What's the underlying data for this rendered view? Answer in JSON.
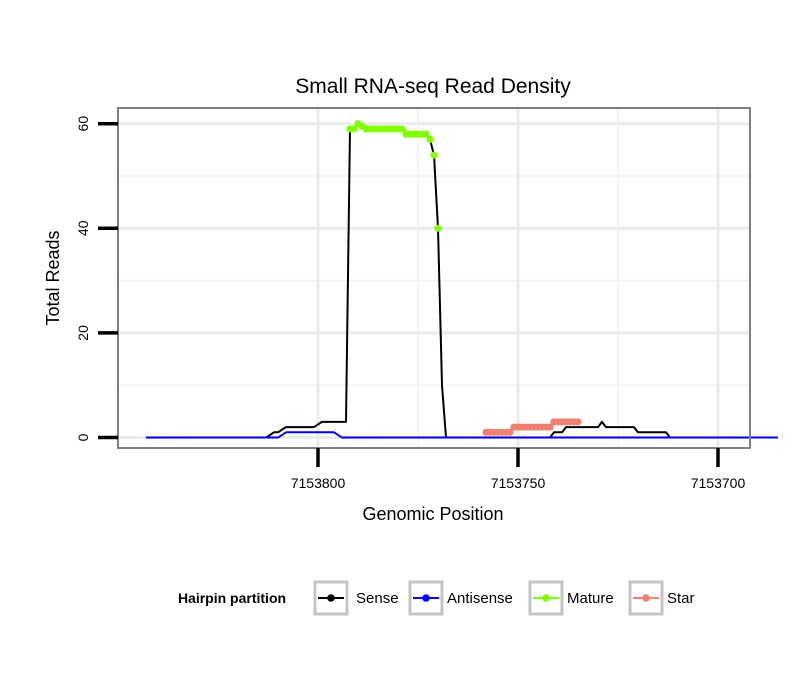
{
  "chart_data": {
    "type": "line",
    "title": "Small RNA-seq Read Density",
    "xlabel": "Genomic Position",
    "ylabel": "Total Reads",
    "xlim": [
      7153850,
      7153692
    ],
    "ylim": [
      -2,
      63
    ],
    "x_reversed": true,
    "x_ticks": [
      {
        "value": 7153800,
        "label": "7153800"
      },
      {
        "value": 7153750,
        "label": "7153750"
      },
      {
        "value": 7153700,
        "label": "7153700"
      }
    ],
    "y_ticks": [
      {
        "value": 0,
        "label": "0"
      },
      {
        "value": 20,
        "label": "20"
      },
      {
        "value": 40,
        "label": "40"
      },
      {
        "value": 60,
        "label": "60"
      }
    ],
    "x_minor_grid": [
      7153775,
      7153725
    ],
    "y_minor_grid": [
      10,
      30,
      50
    ],
    "grid": true,
    "legend": {
      "title": "Hairpin partition",
      "position": "bottom",
      "entries": [
        {
          "name": "Sense",
          "color": "#000000"
        },
        {
          "name": "Antisense",
          "color": "#0000ff"
        },
        {
          "name": "Mature",
          "color": "#7fff00"
        },
        {
          "name": "Star",
          "color": "#f08070"
        }
      ]
    },
    "series": [
      {
        "name": "Sense",
        "color": "#000000",
        "x": [
          7153843,
          7153813,
          7153811,
          7153810,
          7153808,
          7153807,
          7153801,
          7153799,
          7153793,
          7153792,
          7153791,
          7153790,
          7153789,
          7153788,
          7153786,
          7153785,
          7153784,
          7153783,
          7153782,
          7153781,
          7153780,
          7153779,
          7153777,
          7153776,
          7153775,
          7153774,
          7153773,
          7153772,
          7153771,
          7153770,
          7153769,
          7153768,
          7153742,
          7153741,
          7153739,
          7153738,
          7153737,
          7153736,
          7153734,
          7153733,
          7153730,
          7153729,
          7153728,
          7153721,
          7153720,
          7153713,
          7153712,
          7153685
        ],
        "values": [
          0,
          0,
          1,
          1,
          2,
          2,
          2,
          3,
          3,
          59,
          59,
          60,
          59.5,
          59,
          59,
          59,
          59,
          59,
          59,
          59,
          59,
          59,
          58,
          58,
          58,
          58,
          58,
          57,
          54,
          40,
          10,
          0,
          0,
          1,
          1,
          2,
          2,
          2,
          2,
          2,
          2,
          3,
          2,
          2,
          1,
          1,
          0,
          0
        ]
      },
      {
        "name": "Antisense",
        "color": "#0000ff",
        "x": [
          7153843,
          7153812,
          7153810,
          7153808,
          7153796,
          7153794,
          7153710,
          7153685
        ],
        "values": [
          0,
          0,
          0,
          1,
          1,
          0,
          0,
          0
        ]
      },
      {
        "name": "Mature",
        "color": "#7fff00",
        "x": [
          7153792,
          7153791,
          7153790,
          7153789,
          7153788,
          7153787,
          7153786,
          7153785,
          7153784,
          7153783,
          7153782,
          7153781,
          7153780,
          7153779,
          7153778,
          7153777,
          7153776,
          7153775,
          7153774,
          7153773,
          7153772,
          7153771,
          7153770
        ],
        "values": [
          59,
          59,
          60,
          59.5,
          59,
          59,
          59,
          59,
          59,
          59,
          59,
          59,
          59,
          59,
          58,
          58,
          58,
          58,
          58,
          58,
          57,
          54,
          40
        ]
      },
      {
        "name": "Star",
        "color": "#f08070",
        "x": [
          7153758,
          7153757,
          7153756,
          7153755,
          7153754,
          7153753,
          7153752,
          7153751,
          7153750,
          7153749,
          7153748,
          7153747,
          7153746,
          7153745,
          7153744,
          7153743,
          7153742,
          7153741,
          7153740,
          7153739,
          7153738,
          7153737,
          7153736,
          7153735
        ],
        "values": [
          1,
          1,
          1,
          1,
          1,
          1,
          1,
          2,
          2,
          2,
          2,
          2,
          2,
          2,
          2,
          2,
          2,
          3,
          3,
          3,
          3,
          3,
          3,
          3
        ]
      }
    ]
  }
}
